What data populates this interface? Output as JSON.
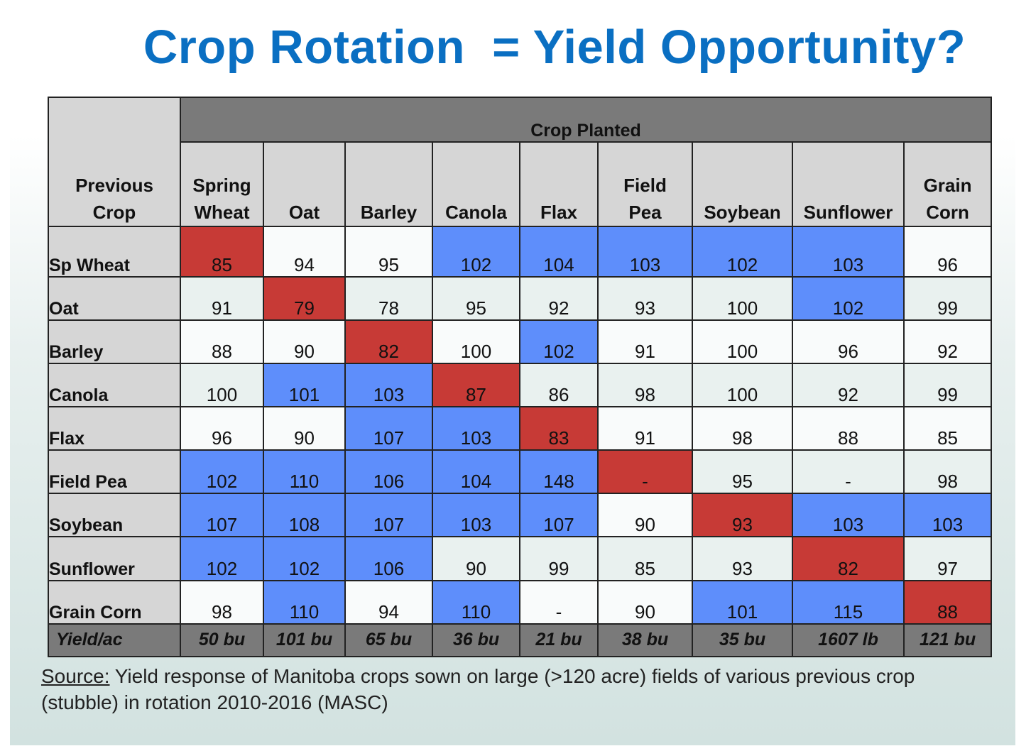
{
  "title": "Crop Rotation  = Yield Opportunity?",
  "colors": {
    "title": "#0a6fc2",
    "below_expected": "#c73a36",
    "above_expected": "#5e8efb",
    "header_grey": "#d6d6d6",
    "dark_grey": "#7a7a7a"
  },
  "chart_data": {
    "type": "table",
    "corner_label_lines": [
      "Previous",
      "Crop"
    ],
    "group_header": "Crop Planted",
    "columns": [
      {
        "lines": [
          "Spring",
          "Wheat"
        ]
      },
      {
        "lines": [
          "",
          "Oat"
        ]
      },
      {
        "lines": [
          "",
          "Barley"
        ]
      },
      {
        "lines": [
          "",
          "Canola"
        ]
      },
      {
        "lines": [
          "",
          "Flax"
        ]
      },
      {
        "lines": [
          "Field",
          "Pea"
        ]
      },
      {
        "lines": [
          "",
          "Soybean"
        ]
      },
      {
        "lines": [
          "",
          "Sunflower"
        ]
      },
      {
        "lines": [
          "Grain",
          "Corn"
        ]
      }
    ],
    "rows": [
      {
        "label": "Sp Wheat",
        "values": [
          "85",
          "94",
          "95",
          "102",
          "104",
          "103",
          "102",
          "103",
          "96"
        ],
        "colors": [
          "red",
          "white",
          "white",
          "blue",
          "blue",
          "blue",
          "blue",
          "blue",
          "white"
        ]
      },
      {
        "label": "Oat",
        "values": [
          "91",
          "79",
          "78",
          "95",
          "92",
          "93",
          "100",
          "102",
          "99"
        ],
        "colors": [
          "pale",
          "red",
          "pale",
          "pale",
          "pale",
          "pale",
          "pale",
          "blue",
          "pale"
        ]
      },
      {
        "label": "Barley",
        "values": [
          "88",
          "90",
          "82",
          "100",
          "102",
          "91",
          "100",
          "96",
          "92"
        ],
        "colors": [
          "white",
          "white",
          "red",
          "white",
          "blue",
          "white",
          "white",
          "white",
          "white"
        ]
      },
      {
        "label": "Canola",
        "values": [
          "100",
          "101",
          "103",
          "87",
          "86",
          "98",
          "100",
          "92",
          "99"
        ],
        "colors": [
          "pale",
          "blue",
          "blue",
          "red",
          "pale",
          "pale",
          "pale",
          "pale",
          "pale"
        ]
      },
      {
        "label": "Flax",
        "values": [
          "96",
          "90",
          "107",
          "103",
          "83",
          "91",
          "98",
          "88",
          "85"
        ],
        "colors": [
          "white",
          "white",
          "blue",
          "blue",
          "red",
          "white",
          "white",
          "white",
          "white"
        ]
      },
      {
        "label": "Field Pea",
        "values": [
          "102",
          "110",
          "106",
          "104",
          "148",
          "-",
          "95",
          "-",
          "98"
        ],
        "colors": [
          "blue",
          "blue",
          "blue",
          "blue",
          "blue",
          "red",
          "pale",
          "pale",
          "pale"
        ]
      },
      {
        "label": "Soybean",
        "values": [
          "107",
          "108",
          "107",
          "103",
          "107",
          "90",
          "93",
          "103",
          "103"
        ],
        "colors": [
          "blue",
          "blue",
          "blue",
          "blue",
          "blue",
          "white",
          "red",
          "blue",
          "blue"
        ]
      },
      {
        "label": "Sunflower",
        "values": [
          "102",
          "102",
          "106",
          "90",
          "99",
          "85",
          "93",
          "82",
          "97"
        ],
        "colors": [
          "blue",
          "blue",
          "blue",
          "pale",
          "pale",
          "pale",
          "pale",
          "red",
          "pale"
        ]
      },
      {
        "label": "Grain Corn",
        "values": [
          "98",
          "110",
          "94",
          "110",
          "-",
          "90",
          "101",
          "115",
          "88"
        ],
        "colors": [
          "white",
          "blue",
          "white",
          "blue",
          "white",
          "white",
          "blue",
          "blue",
          "red"
        ]
      }
    ],
    "footer": {
      "label": "Yield/ac",
      "values": [
        "50 bu",
        "101 bu",
        "65 bu",
        "36 bu",
        "21 bu",
        "38 bu",
        "35 bu",
        "1607 lb",
        "121 bu"
      ]
    }
  },
  "source": {
    "label": "Source:",
    "text": " Yield response of Manitoba crops sown on large (>120 acre) fields of various previous crop (stubble) in rotation 2010-2016 (MASC)"
  }
}
